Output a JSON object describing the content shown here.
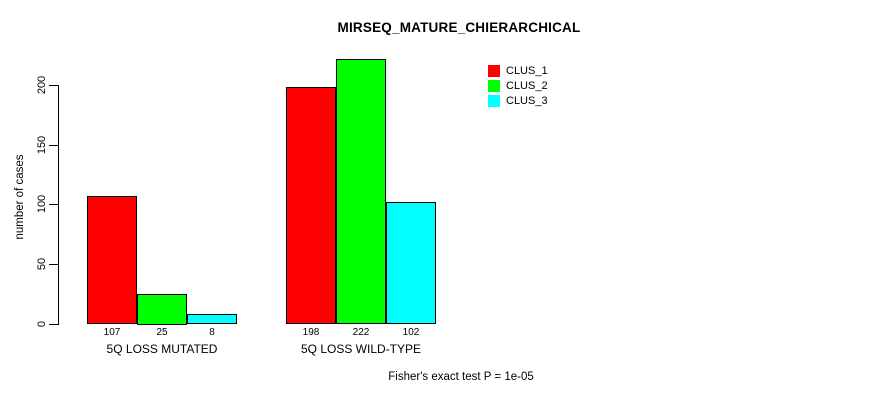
{
  "chart_data": {
    "type": "bar",
    "title": "MIRSEQ_MATURE_CHIERARCHICAL",
    "ylabel": "number of cases",
    "xlabel": "",
    "categories": [
      "5Q LOSS MUTATED",
      "5Q LOSS WILD-TYPE"
    ],
    "series": [
      {
        "name": "CLUS_1",
        "color": "#ff0000",
        "values": [
          107,
          198
        ]
      },
      {
        "name": "CLUS_2",
        "color": "#00ff00",
        "values": [
          25,
          222
        ]
      },
      {
        "name": "CLUS_3",
        "color": "#00ffff",
        "values": [
          8,
          102
        ]
      }
    ],
    "bar_value_labels": [
      [
        107,
        25,
        8
      ],
      [
        198,
        222,
        102
      ]
    ],
    "y_ticks": [
      0,
      50,
      100,
      150,
      200
    ],
    "ylim": [
      0,
      230
    ],
    "grid": false,
    "legend_position": "top-right",
    "bar_border_color": "#000000",
    "annotation": "Fisher's exact test P = 1e-05"
  }
}
